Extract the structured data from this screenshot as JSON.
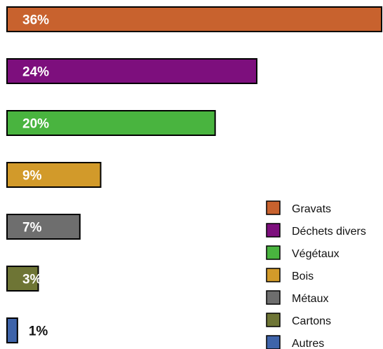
{
  "chart_data": {
    "type": "bar",
    "orientation": "horizontal",
    "categories": [
      "Gravats",
      "Déchets divers",
      "Végétaux",
      "Bois",
      "Métaux",
      "Cartons",
      "Autres"
    ],
    "values": [
      36,
      24,
      20,
      9,
      7,
      3,
      1
    ],
    "labels": [
      "36%",
      "24%",
      "20%",
      "9%",
      "7%",
      "3%",
      "1%"
    ],
    "colors": [
      "#c8622e",
      "#7d0f7d",
      "#49b43f",
      "#d29a2a",
      "#6e6e6e",
      "#6e7535",
      "#3f64aa"
    ],
    "legend": {
      "position": "bottom-right",
      "entries": [
        "Gravats",
        "Déchets divers",
        "Végétaux",
        "Bois",
        "Métaux",
        "Cartons",
        "Autres"
      ]
    },
    "grid": false,
    "xlim": [
      0,
      36
    ]
  }
}
